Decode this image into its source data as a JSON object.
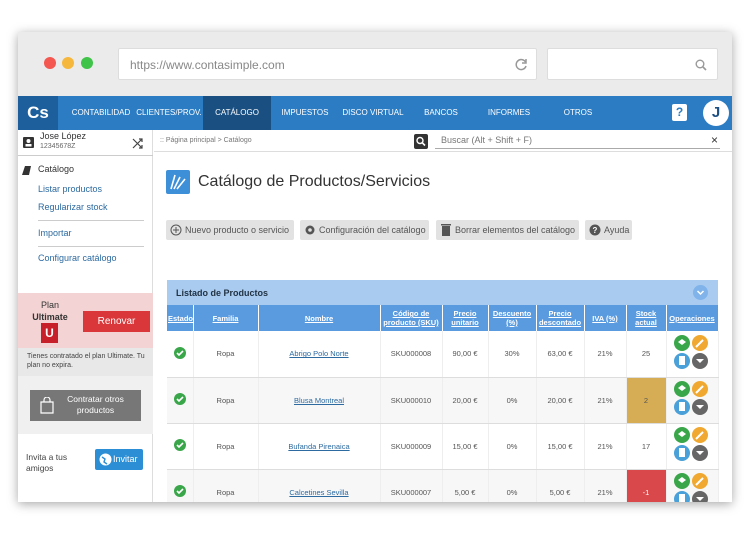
{
  "browser": {
    "url": "https://www.contasimple.com"
  },
  "nav": {
    "logo": "Cs",
    "items": [
      "CONTABILIDAD",
      "CLIENTES/PROV.",
      "CATÁLOGO",
      "IMPUESTOS",
      "DISCO VIRTUAL",
      "BANCOS",
      "INFORMES",
      "OTROS"
    ],
    "help": "?",
    "avatar": "J"
  },
  "user": {
    "name": "Jose López",
    "id": "12345678Z"
  },
  "sidebar": {
    "section": "Catálogo",
    "links": [
      "Listar productos",
      "Regularizar stock",
      "Importar",
      "Configurar catálogo"
    ],
    "plan": {
      "label": "Plan",
      "name": "Ultimate",
      "badge": "U",
      "button": "Renovar",
      "note": "Tienes contratado el plan Ultimate. Tu plan no expira."
    },
    "contract": "Contratar otros productos",
    "invite": "Invita a tus amigos",
    "invite_button": "Invitar"
  },
  "breadcrumb": ":: Página principal > Catálogo",
  "search": "Buscar (Alt + Shift + F)",
  "close": "×",
  "title": "Catálogo de Productos/Servicios",
  "toolbar": [
    "Nuevo producto o servicio",
    "Configuración del catálogo",
    "Borrar elementos del catálogo",
    "Ayuda"
  ],
  "table": {
    "title": "Listado de Productos",
    "columns": [
      "Estado",
      "Familia",
      "Nombre",
      "Código de producto (SKU)",
      "Precio unitario",
      "Descuento (%)",
      "Precio descontado",
      "IVA (%)",
      "Stock actual",
      "Operaciones"
    ],
    "rows": [
      [
        "Ropa",
        "Abrigo Polo Norte",
        "SKU000008",
        "90,00 €",
        "30%",
        "63,00 €",
        "21%",
        "25"
      ],
      [
        "Ropa",
        "Blusa Montreal",
        "SKU000010",
        "20,00 €",
        "0%",
        "20,00 €",
        "21%",
        "2"
      ],
      [
        "Ropa",
        "Bufanda Pirenaica",
        "SKU000009",
        "15,00 €",
        "0%",
        "15,00 €",
        "21%",
        "17"
      ],
      [
        "Ropa",
        "Calcetines Sevilla",
        "SKU000007",
        "5,00 €",
        "0%",
        "5,00 €",
        "21%",
        "-1"
      ]
    ]
  }
}
